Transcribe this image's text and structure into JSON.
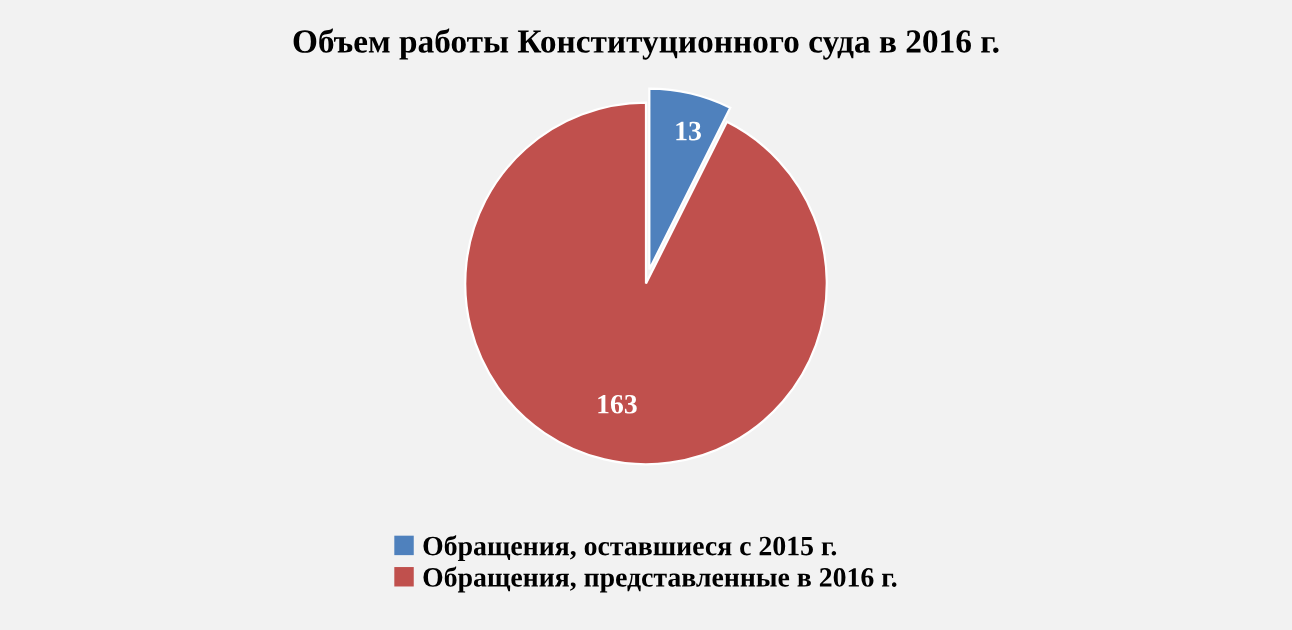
{
  "chart_data": {
    "type": "pie",
    "title": "Объем работы Конституционного суда в 2016 г.",
    "categories": [
      "Обращения, оставшиеся с 2015 г.",
      "Обращения, представленные в 2016 г."
    ],
    "values": [
      13,
      163
    ],
    "colors": [
      "#4f81bd",
      "#c0504d"
    ],
    "data_labels": true,
    "legend": "bottom"
  }
}
